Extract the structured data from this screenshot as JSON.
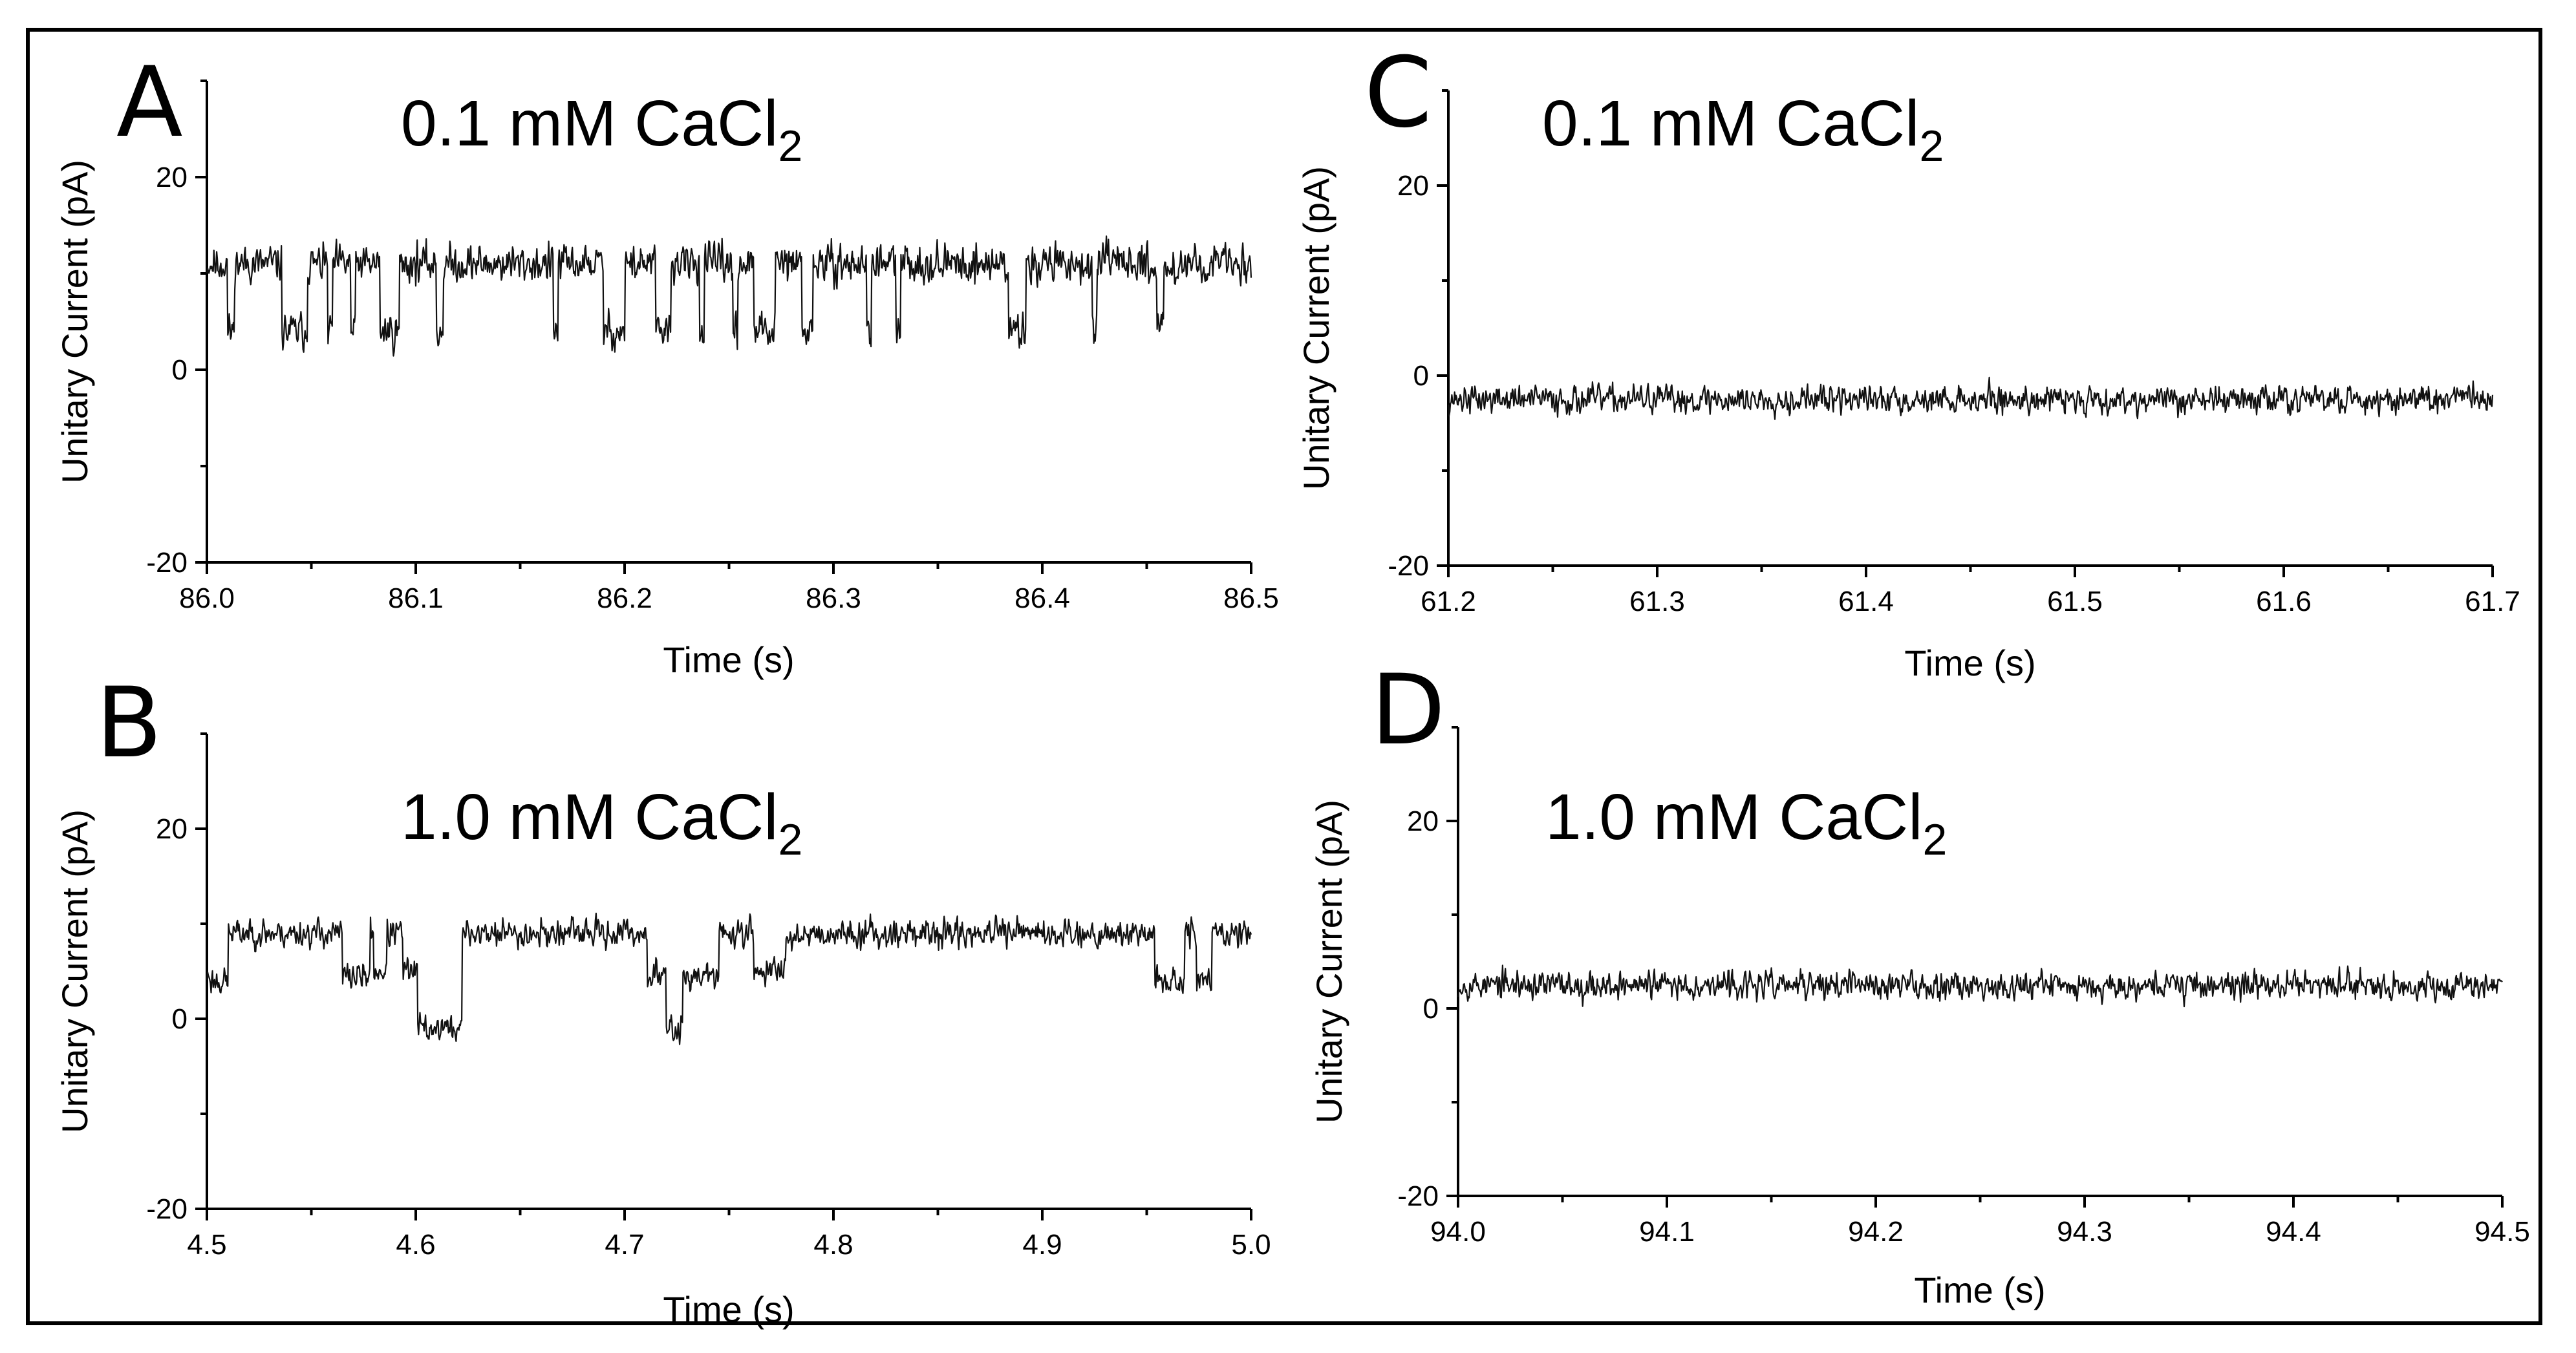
{
  "chart_data": [
    {
      "id": "A",
      "type": "line",
      "panel_label": "A",
      "title_main": "0.1 mM CaCl",
      "title_sub": "2",
      "xlabel": "Time (s)",
      "ylabel": "Unitary Current (pA)",
      "xlim": [
        86.0,
        86.5
      ],
      "ylim": [
        -20,
        30
      ],
      "xticks": [
        86.0,
        86.1,
        86.2,
        86.3,
        86.4,
        86.5
      ],
      "xtick_labels": [
        "86.0",
        "86.1",
        "86.2",
        "86.3",
        "86.4",
        "86.5"
      ],
      "yticks": [
        -20,
        0,
        20
      ],
      "ytick_labels": [
        "-20",
        "0",
        "20"
      ],
      "series": [
        {
          "name": "trace",
          "open_level": 11,
          "closed_level": 4,
          "noise": 1.3,
          "closures": [
            [
              86.01,
              86.013
            ],
            [
              86.036,
              86.048
            ],
            [
              86.058,
              86.06
            ],
            [
              86.069,
              86.071
            ],
            [
              86.083,
              86.092
            ],
            [
              86.11,
              86.113
            ],
            [
              86.166,
              86.168
            ],
            [
              86.19,
              86.2
            ],
            [
              86.215,
              86.222
            ],
            [
              86.236,
              86.238
            ],
            [
              86.252,
              86.254
            ],
            [
              86.262,
              86.272
            ],
            [
              86.285,
              86.29
            ],
            [
              86.316,
              86.318
            ],
            [
              86.33,
              86.332
            ],
            [
              86.384,
              86.392
            ],
            [
              86.424,
              86.426
            ],
            [
              86.455,
              86.458
            ]
          ],
          "samples": 1500,
          "seed": 11
        }
      ]
    },
    {
      "id": "B",
      "type": "line",
      "panel_label": "B",
      "title_main": "1.0 mM CaCl",
      "title_sub": "2",
      "xlabel": "Time (s)",
      "ylabel": "Unitary Current (pA)",
      "xlim": [
        4.5,
        5.0
      ],
      "ylim": [
        -20,
        30
      ],
      "xticks": [
        4.5,
        4.6,
        4.7,
        4.8,
        4.9,
        5.0
      ],
      "xtick_labels": [
        "4.5",
        "4.6",
        "4.7",
        "4.8",
        "4.9",
        "5.0"
      ],
      "yticks": [
        -20,
        0,
        20
      ],
      "ytick_labels": [
        "-20",
        "0",
        "20"
      ],
      "series": [
        {
          "name": "trace",
          "open_level": 9,
          "closed_level": 4,
          "noise": 1.0,
          "segments": [
            [
              4.5,
              4.502,
              4.5
            ],
            [
              4.502,
              4.51,
              4.0
            ],
            [
              4.565,
              4.578,
              4.5
            ],
            [
              4.58,
              4.586,
              5.0
            ],
            [
              4.594,
              4.601,
              5.0
            ],
            [
              4.601,
              4.622,
              -1.0
            ],
            [
              4.711,
              4.72,
              4.5
            ],
            [
              4.72,
              4.728,
              -1.0
            ],
            [
              4.728,
              4.745,
              4.5
            ],
            [
              4.762,
              4.777,
              5.0
            ],
            [
              4.954,
              4.968,
              4.0
            ],
            [
              4.974,
              4.981,
              4.0
            ]
          ],
          "samples": 1500,
          "seed": 23
        }
      ]
    },
    {
      "id": "C",
      "type": "line",
      "panel_label": "C",
      "title_main": "0.1 mM CaCl",
      "title_sub": "2",
      "xlabel": "Time (s)",
      "ylabel": "Unitary Current (pA)",
      "xlim": [
        61.2,
        61.7
      ],
      "ylim": [
        -20,
        30
      ],
      "xticks": [
        61.2,
        61.3,
        61.4,
        61.5,
        61.6,
        61.7
      ],
      "xtick_labels": [
        "61.2",
        "61.3",
        "61.4",
        "61.5",
        "61.6",
        "61.7"
      ],
      "yticks": [
        -20,
        0,
        20
      ],
      "ytick_labels": [
        "-20",
        "0",
        "20"
      ],
      "series": [
        {
          "name": "trace",
          "open_level": -2.5,
          "closed_level": -2.5,
          "noise": 1.0,
          "samples": 1500,
          "seed": 37
        }
      ]
    },
    {
      "id": "D",
      "type": "line",
      "panel_label": "D",
      "title_main": "1.0 mM CaCl",
      "title_sub": "2",
      "xlabel": "Time (s)",
      "ylabel": "Unitary Current (pA)",
      "xlim": [
        94.0,
        94.5
      ],
      "ylim": [
        -20,
        30
      ],
      "xticks": [
        94.0,
        94.1,
        94.2,
        94.3,
        94.4,
        94.5
      ],
      "xtick_labels": [
        "94.0",
        "94.1",
        "94.2",
        "94.3",
        "94.4",
        "94.5"
      ],
      "yticks": [
        -20,
        0,
        20
      ],
      "ytick_labels": [
        "-20",
        "0",
        "20"
      ],
      "series": [
        {
          "name": "trace",
          "open_level": 2.5,
          "closed_level": 2.5,
          "noise": 1.0,
          "samples": 1500,
          "seed": 53
        }
      ]
    }
  ]
}
